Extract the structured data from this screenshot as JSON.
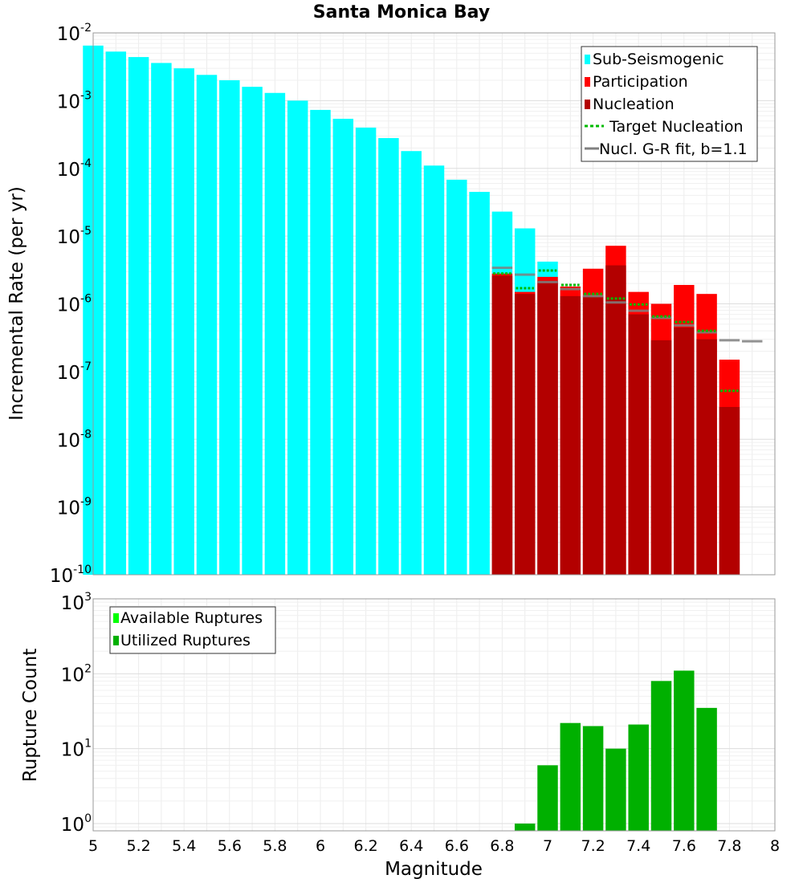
{
  "chart_data": [
    {
      "type": "bar",
      "title": "Santa Monica Bay",
      "xlabel": "",
      "ylabel": "Incremental Rate (per yr)",
      "xlim": [
        5,
        8
      ],
      "ylim": [
        1e-10,
        0.01
      ],
      "yscale": "log",
      "grid": true,
      "legend_position": "top-right",
      "bar_width": 0.09,
      "colors": {
        "sub_seismogenic": "#00ffff",
        "participation": "#ff0000",
        "nucleation": "#b30000",
        "target_nucleation": "#00bb00",
        "gr_fit": "#808080"
      },
      "legend": [
        "Sub-Seismogenic",
        "Participation",
        "Nucleation",
        "Target Nucleation",
        "Nucl. G-R fit, b=1.1"
      ],
      "series": [
        {
          "name": "Sub-Seismogenic",
          "x": [
            5.0,
            5.1,
            5.2,
            5.3,
            5.4,
            5.5,
            5.6,
            5.7,
            5.8,
            5.9,
            6.0,
            6.1,
            6.2,
            6.3,
            6.4,
            6.5,
            6.6,
            6.7,
            6.8,
            6.9,
            7.0,
            7.1
          ],
          "values": [
            0.0065,
            0.0053,
            0.0044,
            0.0036,
            0.003,
            0.0024,
            0.002,
            0.0016,
            0.0013,
            0.001,
            0.00073,
            0.00054,
            0.0004,
            0.00028,
            0.00018,
            0.00011,
            6.8e-05,
            4.5e-05,
            2.3e-05,
            1.3e-05,
            4.2e-06,
            1.8e-06
          ]
        },
        {
          "name": "Participation",
          "x": [
            6.8,
            6.9,
            7.0,
            7.1,
            7.2,
            7.3,
            7.4,
            7.5,
            7.6,
            7.7,
            7.8
          ],
          "values": [
            2.8e-06,
            1.5e-06,
            2.5e-06,
            1.8e-06,
            3.3e-06,
            7.2e-06,
            1.5e-06,
            1e-06,
            1.9e-06,
            1.4e-06,
            1.5e-07
          ]
        },
        {
          "name": "Nucleation",
          "x": [
            6.8,
            6.9,
            7.0,
            7.1,
            7.2,
            7.3,
            7.4,
            7.5,
            7.6,
            7.7,
            7.8
          ],
          "values": [
            2.6e-06,
            1.4e-06,
            2.2e-06,
            1.3e-06,
            1.3e-06,
            3.7e-06,
            7e-07,
            2.9e-07,
            4.5e-07,
            3e-07,
            3e-08
          ]
        },
        {
          "name": "Target Nucleation",
          "x": [
            6.8,
            6.9,
            7.0,
            7.1,
            7.2,
            7.3,
            7.4,
            7.5,
            7.6,
            7.7,
            7.8
          ],
          "values": [
            2.8e-06,
            1.7e-06,
            3.1e-06,
            1.9e-06,
            1.4e-06,
            1.2e-06,
            9.8e-07,
            6.5e-07,
            5.4e-07,
            4e-07,
            5.2e-08
          ]
        },
        {
          "name": "Nucl. G-R fit, b=1.1",
          "x": [
            6.8,
            6.9,
            7.0,
            7.1,
            7.2,
            7.3,
            7.4,
            7.5,
            7.6,
            7.7,
            7.8,
            7.9
          ],
          "values": [
            3.4e-06,
            2.7e-06,
            2.1e-06,
            1.65e-06,
            1.3e-06,
            1.05e-06,
            7.9e-07,
            6.2e-07,
            4.8e-07,
            3.8e-07,
            2.9e-07,
            2.8e-07
          ]
        }
      ]
    },
    {
      "type": "bar",
      "title": "",
      "xlabel": "Magnitude",
      "ylabel": "Rupture Count",
      "xlim": [
        5,
        8
      ],
      "ylim": [
        0.8,
        1000
      ],
      "yscale": "log",
      "grid": true,
      "legend_position": "top-left",
      "bar_width": 0.09,
      "colors": {
        "available": "#00ff00",
        "utilized": "#00b000"
      },
      "legend": [
        "Available Ruptures",
        "Utilized Ruptures"
      ],
      "series": [
        {
          "name": "Utilized Ruptures",
          "x": [
            6.9,
            7.0,
            7.1,
            7.2,
            7.3,
            7.4,
            7.5,
            7.6,
            7.7
          ],
          "values": [
            1,
            6,
            22,
            20,
            10,
            21,
            80,
            110,
            35
          ]
        }
      ]
    }
  ],
  "axes": {
    "x_ticks": [
      "5",
      "5.2",
      "5.4",
      "5.6",
      "5.8",
      "6",
      "6.2",
      "6.4",
      "6.6",
      "6.8",
      "7",
      "7.2",
      "7.4",
      "7.6",
      "7.8",
      "8"
    ],
    "top_y_ticks": [
      {
        "base": "10",
        "exp": "-2"
      },
      {
        "base": "10",
        "exp": "-3"
      },
      {
        "base": "10",
        "exp": "-4"
      },
      {
        "base": "10",
        "exp": "-5"
      },
      {
        "base": "10",
        "exp": "-6"
      },
      {
        "base": "10",
        "exp": "-7"
      },
      {
        "base": "10",
        "exp": "-8"
      },
      {
        "base": "10",
        "exp": "-9"
      },
      {
        "base": "10",
        "exp": "-10"
      }
    ],
    "bottom_y_ticks": [
      {
        "base": "10",
        "exp": "3"
      },
      {
        "base": "10",
        "exp": "2"
      },
      {
        "base": "10",
        "exp": "1"
      },
      {
        "base": "10",
        "exp": "0"
      }
    ]
  }
}
